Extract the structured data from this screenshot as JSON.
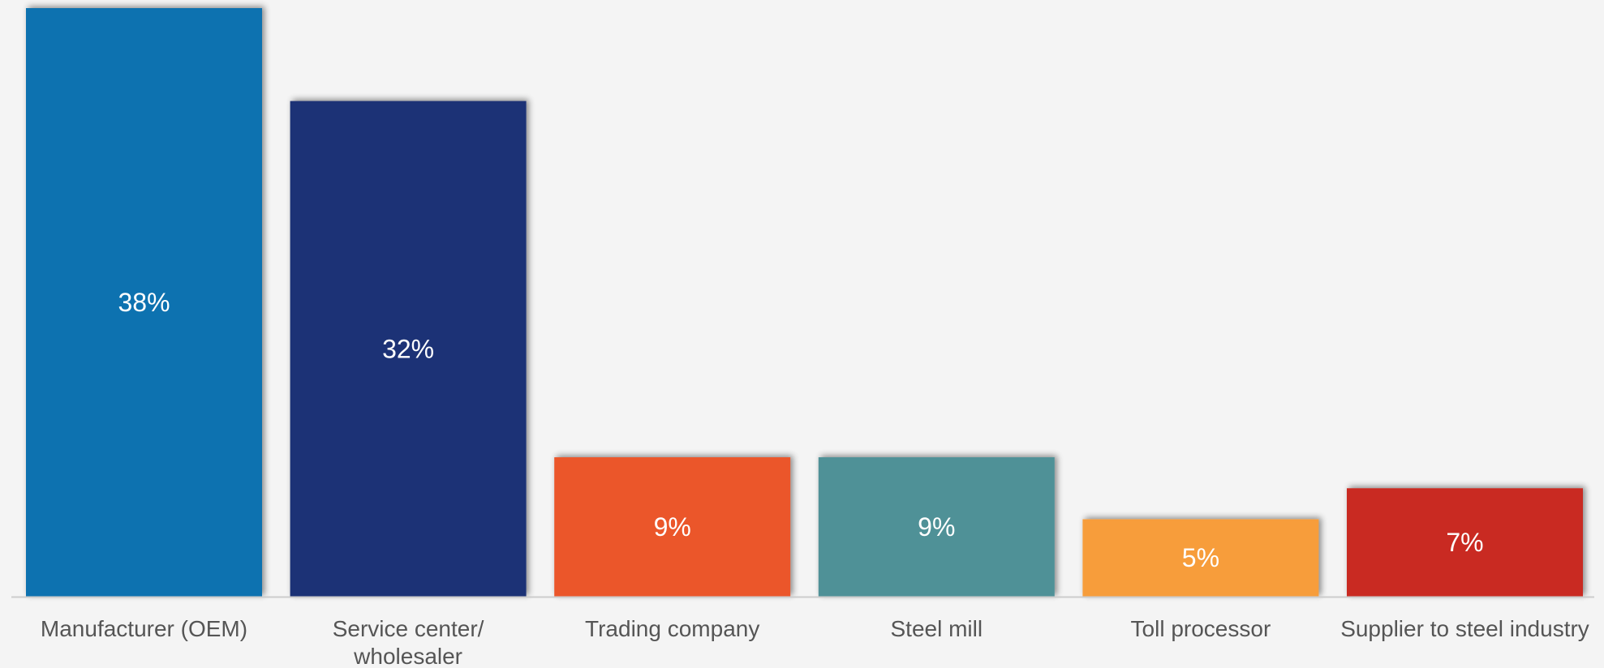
{
  "chart_data": {
    "type": "bar",
    "title": "",
    "xlabel": "",
    "ylabel": "",
    "ylim": [
      0,
      38
    ],
    "grid": false,
    "legend": "none",
    "categories": [
      [
        "Manufacturer (OEM)"
      ],
      [
        "Service center/",
        "wholesaler"
      ],
      [
        "Trading company"
      ],
      [
        "Steel mill"
      ],
      [
        "Toll processor"
      ],
      [
        "Supplier to steel industry"
      ]
    ],
    "values": [
      38,
      32,
      9,
      9,
      5,
      7
    ],
    "data_labels": [
      "38%",
      "32%",
      "9%",
      "9%",
      "5%",
      "7%"
    ],
    "colors": [
      "#0f72b0",
      "#1f3376",
      "#eb562a",
      "#4f9197",
      "#f79d3b",
      "#c92c20"
    ]
  },
  "style": {
    "background": "#f4f4f4",
    "axis_color": "#cccccc",
    "category_label_color": "#555555",
    "data_label_color": "#ffffff"
  }
}
